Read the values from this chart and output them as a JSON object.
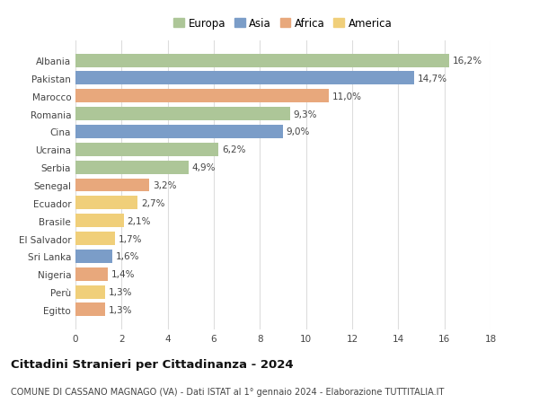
{
  "countries": [
    "Albania",
    "Pakistan",
    "Marocco",
    "Romania",
    "Cina",
    "Ucraina",
    "Serbia",
    "Senegal",
    "Ecuador",
    "Brasile",
    "El Salvador",
    "Sri Lanka",
    "Nigeria",
    "Perù",
    "Egitto"
  ],
  "values": [
    16.2,
    14.7,
    11.0,
    9.3,
    9.0,
    6.2,
    4.9,
    3.2,
    2.7,
    2.1,
    1.7,
    1.6,
    1.4,
    1.3,
    1.3
  ],
  "labels": [
    "16,2%",
    "14,7%",
    "11,0%",
    "9,3%",
    "9,0%",
    "6,2%",
    "4,9%",
    "3,2%",
    "2,7%",
    "2,1%",
    "1,7%",
    "1,6%",
    "1,4%",
    "1,3%",
    "1,3%"
  ],
  "continents": [
    "Europa",
    "Asia",
    "Africa",
    "Europa",
    "Asia",
    "Europa",
    "Europa",
    "Africa",
    "America",
    "America",
    "America",
    "Asia",
    "Africa",
    "America",
    "Africa"
  ],
  "colors": {
    "Europa": "#adc698",
    "Asia": "#7b9dc8",
    "Africa": "#e8a87c",
    "America": "#f0cf7a"
  },
  "legend_order": [
    "Europa",
    "Asia",
    "Africa",
    "America"
  ],
  "xlim": [
    0,
    18
  ],
  "xticks": [
    0,
    2,
    4,
    6,
    8,
    10,
    12,
    14,
    16,
    18
  ],
  "title": "Cittadini Stranieri per Cittadinanza - 2024",
  "subtitle": "COMUNE DI CASSANO MAGNAGO (VA) - Dati ISTAT al 1° gennaio 2024 - Elaborazione TUTTITALIA.IT",
  "title_fontsize": 9.5,
  "subtitle_fontsize": 7.0,
  "label_fontsize": 7.5,
  "tick_fontsize": 7.5,
  "legend_fontsize": 8.5,
  "background_color": "#ffffff",
  "grid_color": "#dddddd",
  "bar_height": 0.75
}
